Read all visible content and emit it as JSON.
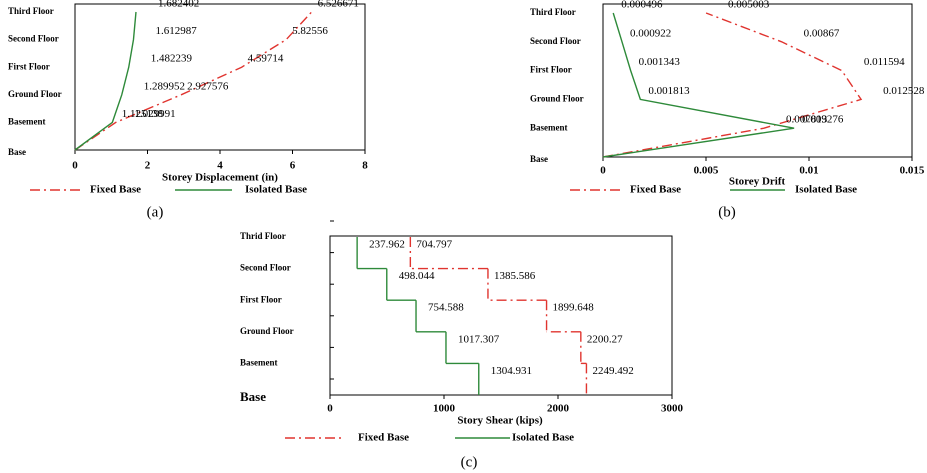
{
  "chart_data": [
    {
      "type": "line",
      "panel": "(a)",
      "xlabel": "Storey Displacement (in)",
      "categories": [
        "Base",
        "Basement",
        "Ground Floor",
        "First Floor",
        "Second Floor",
        "Third Floor"
      ],
      "series": [
        {
          "name": "Fixed Base",
          "color": "#e0342f",
          "values": [
            0,
            1.125138,
            2.927576,
            4.59714,
            5.82556,
            6.526671
          ]
        },
        {
          "name": "Isolated Base",
          "color": "#2e8a3a",
          "values": [
            0,
            1.029991,
            1.289952,
            1.482239,
            1.612987,
            1.682402
          ]
        }
      ],
      "xlim": [
        0,
        8
      ],
      "xticks": [
        0,
        2,
        4,
        6,
        8
      ]
    },
    {
      "type": "line",
      "panel": "(b)",
      "xlabel": "Storey Drift",
      "categories": [
        "Base",
        "Basement",
        "Ground Floor",
        "First Floor",
        "Second Floor",
        "Third Floor"
      ],
      "series": [
        {
          "name": "Fixed Base",
          "color": "#e0342f",
          "values": [
            0,
            0.007813,
            0.012528,
            0.011594,
            0.00867,
            0.005003
          ]
        },
        {
          "name": "Isolated Base",
          "color": "#2e8a3a",
          "values": [
            0,
            0.009276,
            0.001813,
            0.001343,
            0.000922,
            0.000496
          ]
        }
      ],
      "xlim": [
        0,
        0.015
      ],
      "xticks": [
        0,
        0.005,
        0.01,
        0.015
      ]
    },
    {
      "type": "step",
      "panel": "(c)",
      "xlabel": "Story Shear (kips)",
      "levels": [
        "Base",
        "Basement",
        "Ground Floor",
        "First Floor",
        "Second Floor",
        "Thrid Floor"
      ],
      "series": [
        {
          "name": "Fixed Base",
          "color": "#e0342f",
          "values": [
            2249.492,
            2200.27,
            1899.648,
            1385.586,
            704.797
          ]
        },
        {
          "name": "Isolated Base",
          "color": "#2e8a3a",
          "values": [
            1304.931,
            1017.307,
            754.588,
            498.044,
            237.962
          ]
        }
      ],
      "xlim": [
        0,
        3000
      ],
      "xticks": [
        0,
        1000,
        2000,
        3000
      ]
    }
  ]
}
